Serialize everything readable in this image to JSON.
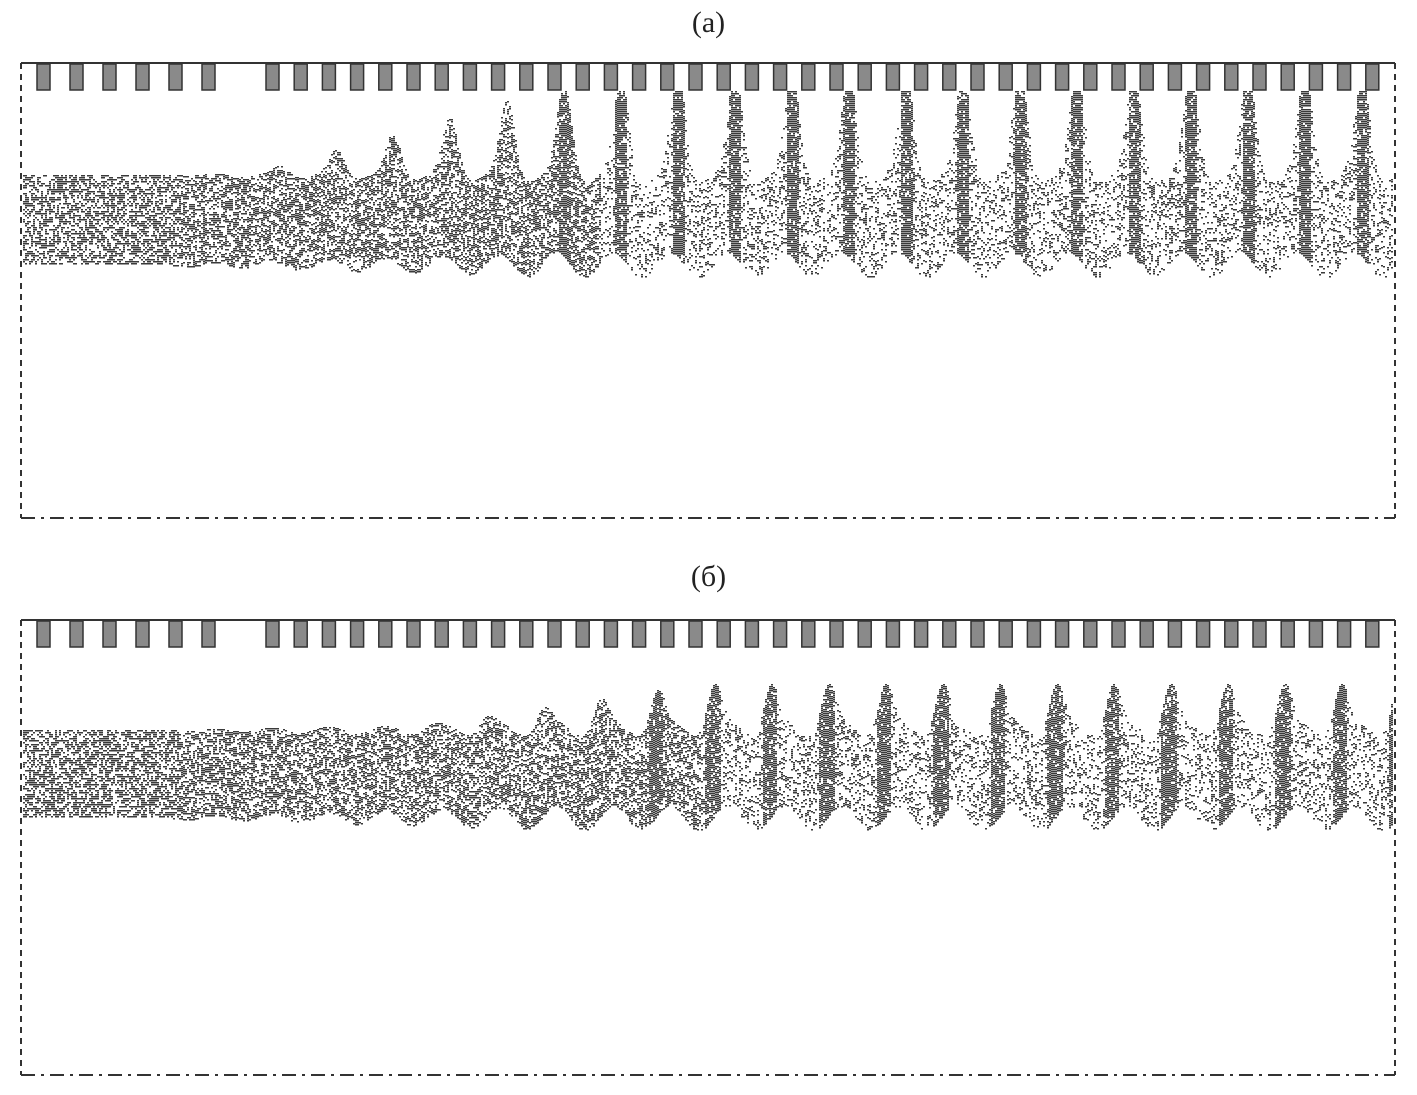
{
  "panels": [
    {
      "label": "(а)"
    },
    {
      "label": "(б)"
    }
  ],
  "colors": {
    "vane_fill": "#8a8a8a",
    "vane_stroke": "#333333",
    "particles": "#3a3a3a",
    "border": "#333333"
  }
}
